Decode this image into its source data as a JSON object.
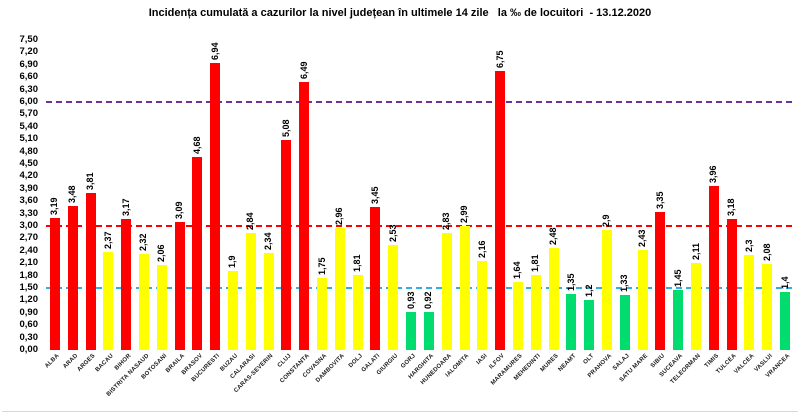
{
  "title": "Incidența cumulată a cazurilor la nivel județean în ultimele 14 zile   la ‰ de locuitori  - 13.12.2020",
  "chart_data": {
    "type": "bar",
    "title": "Incidența cumulată a cazurilor la nivel județean în ultimele 14 zile   la ‰ de locuitori  - 13.12.2020",
    "xlabel": "",
    "ylabel": "",
    "ylim": [
      0,
      7.5
    ],
    "ytick_step": 0.3,
    "ytick_labels": [
      "7,50",
      "7,20",
      "6,90",
      "6,60",
      "6,30",
      "6,00",
      "5,70",
      "5,40",
      "5,10",
      "4,80",
      "4,50",
      "4,20",
      "3,90",
      "3,60",
      "3,30",
      "3,00",
      "2,70",
      "2,40",
      "2,10",
      "1,80",
      "1,50",
      "1,20",
      "0,90",
      "0,60",
      "0,30",
      "0,00"
    ],
    "grid": false,
    "legend": "none",
    "categories": [
      "ALBA",
      "ARAD",
      "ARGES",
      "BACAU",
      "BIHOR",
      "BISTRITA NASAUD",
      "BOTOSANI",
      "BRAILA",
      "BRASOV",
      "BUCURESTI",
      "BUZAU",
      "CALARASI",
      "CARAS-SEVERIN",
      "CLUJ",
      "CONSTANTA",
      "COVASNA",
      "DAMBOVITA",
      "DOLJ",
      "GALATI",
      "GIURGIU",
      "GORJ",
      "HARGHITA",
      "HUNEDOARA",
      "IALOMITA",
      "IASI",
      "ILFOV",
      "MARAMURES",
      "MEHEDINTI",
      "MURES",
      "NEAMT",
      "OLT",
      "PRAHOVA",
      "SALAJ",
      "SATU MARE",
      "SIBIU",
      "SUCEAVA",
      "TELEORMAN",
      "TIMIS",
      "TULCEA",
      "VALCEA",
      "VASLUI",
      "VRANCEA"
    ],
    "values": [
      3.19,
      3.48,
      3.81,
      2.37,
      3.17,
      2.32,
      2.06,
      3.09,
      4.68,
      6.94,
      1.9,
      2.84,
      2.34,
      5.08,
      6.49,
      1.75,
      2.96,
      1.81,
      3.45,
      2.53,
      0.93,
      0.92,
      2.83,
      2.99,
      2.16,
      6.75,
      1.64,
      1.81,
      2.48,
      1.35,
      1.2,
      2.9,
      1.33,
      2.43,
      3.35,
      1.45,
      2.11,
      3.96,
      3.18,
      2.3,
      2.08,
      1.4
    ],
    "value_labels": [
      "3,19",
      "3,48",
      "3,81",
      "2,37",
      "3,17",
      "2,32",
      "2,06",
      "3,09",
      "4,68",
      "6,94",
      "1,9",
      "2,84",
      "2,34",
      "5,08",
      "6,49",
      "1,75",
      "2,96",
      "1,81",
      "3,45",
      "2,53",
      "0,93",
      "0,92",
      "2,83",
      "2,99",
      "2,16",
      "6,75",
      "1,64",
      "1,81",
      "2,48",
      "1,35",
      "1,2",
      "2,9",
      "1,33",
      "2,43",
      "3,35",
      "1,45",
      "2,11",
      "3,96",
      "3,18",
      "2,3",
      "2,08",
      "1,4"
    ],
    "bar_color_names": [
      "red",
      "red",
      "red",
      "yellow",
      "red",
      "yellow",
      "yellow",
      "red",
      "red",
      "red",
      "yellow",
      "yellow",
      "yellow",
      "red",
      "red",
      "yellow",
      "yellow",
      "yellow",
      "red",
      "yellow",
      "green",
      "green",
      "yellow",
      "yellow",
      "yellow",
      "red",
      "yellow",
      "yellow",
      "yellow",
      "green",
      "green",
      "yellow",
      "green",
      "yellow",
      "red",
      "green",
      "yellow",
      "red",
      "red",
      "yellow",
      "yellow",
      "green"
    ],
    "palette": {
      "red": "#FF0000",
      "yellow": "#FFFF00",
      "green": "#00DC6E"
    },
    "color_rule": {
      "red_if_above": 3.0,
      "green_if_below": 1.5,
      "else": "yellow"
    },
    "reference_lines": [
      {
        "y": 6.0,
        "color": "#7030A0",
        "style": "dashed"
      },
      {
        "y": 3.0,
        "color": "#FF0000",
        "style": "dashed"
      },
      {
        "y": 1.5,
        "color": "#33ADE6",
        "style": "dashed"
      }
    ]
  }
}
